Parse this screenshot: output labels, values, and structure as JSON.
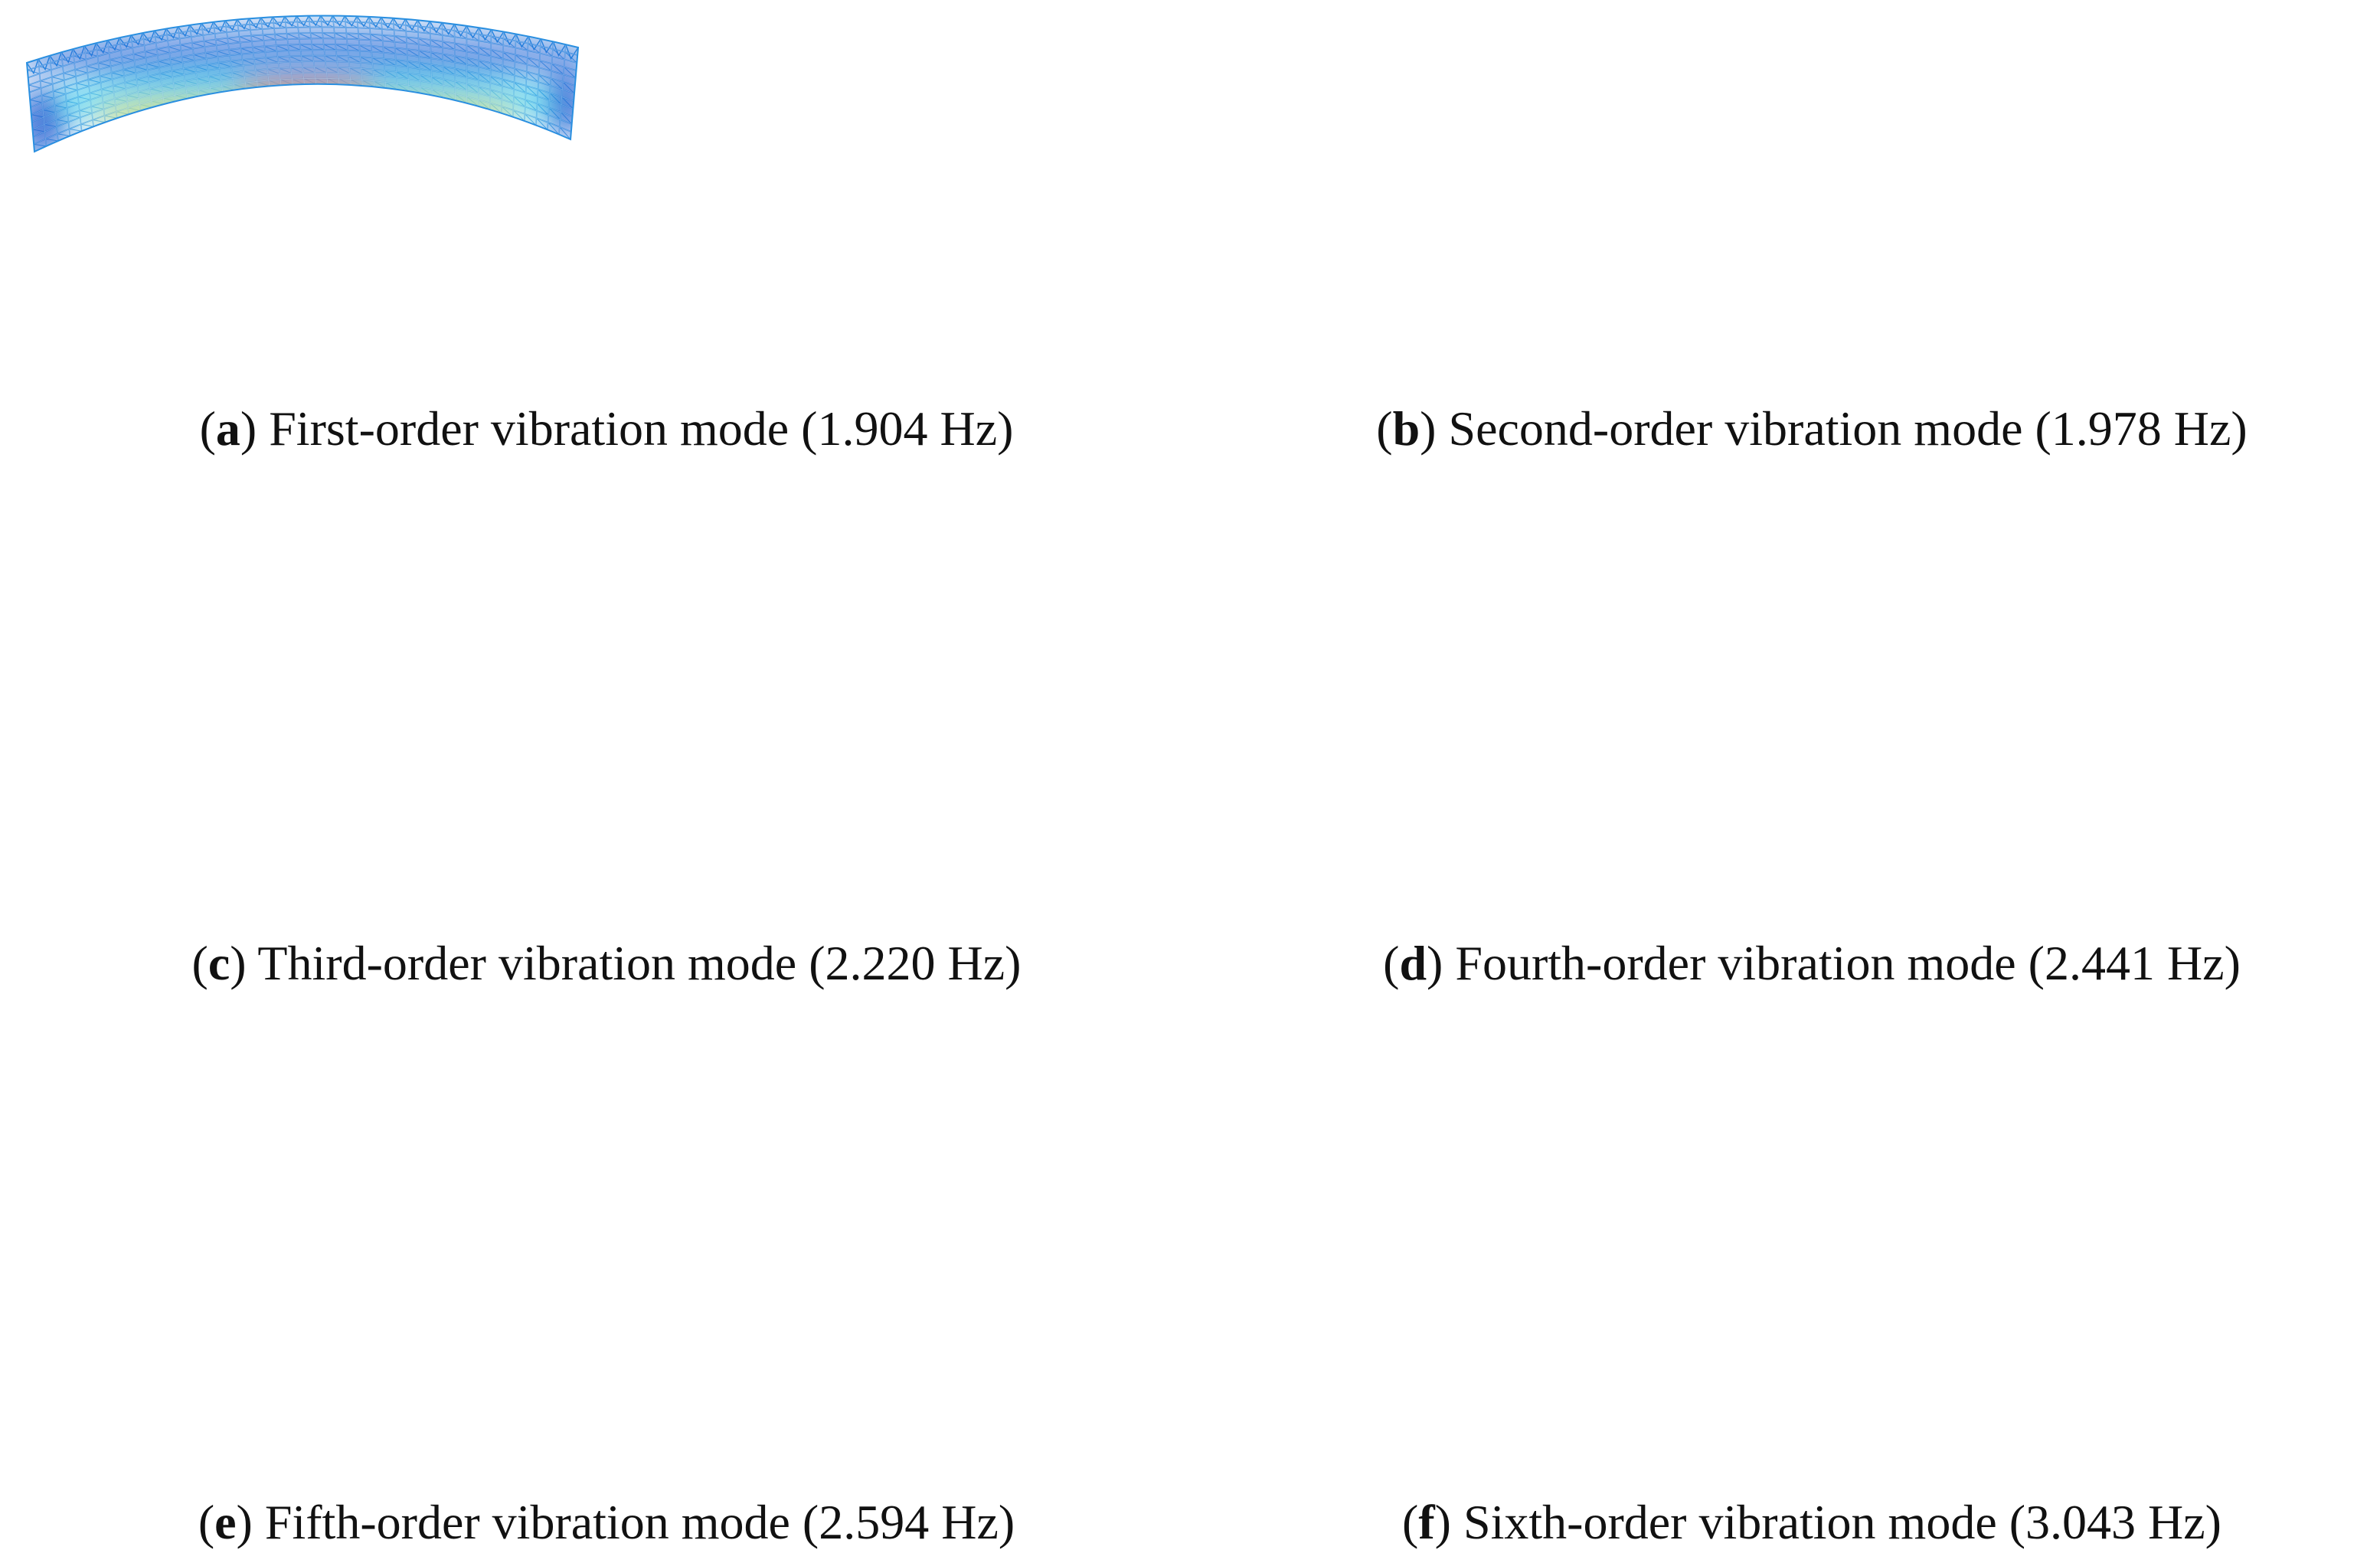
{
  "figure": {
    "panels": [
      {
        "letter": "a",
        "caption": "First-order vibration mode (1.904 Hz)",
        "base_color": "#2a8fe0",
        "regions": [
          {
            "where": "upper band",
            "color": "#1f63d6"
          },
          {
            "where": "inner field",
            "color": "#21d6f0"
          },
          {
            "where": "lower edge",
            "color": "#f5e31c"
          },
          {
            "where": "lower edge center",
            "color": "#e8301c"
          },
          {
            "where": "end supports",
            "color": "#1c57d0"
          }
        ]
      },
      {
        "letter": "b",
        "caption": "Second-order vibration mode (1.978 Hz)",
        "base_color": "#5ef03a",
        "regions": [
          {
            "where": "left field",
            "color": "#28e6b0"
          },
          {
            "where": "lower left support",
            "color": "#1f5ce0"
          },
          {
            "where": "lower right edge",
            "color": "#f0d21c"
          },
          {
            "where": "lower right edge peak",
            "color": "#ec2a1a"
          }
        ]
      },
      {
        "letter": "c",
        "caption": "Third-order vibration mode (2.220 Hz)",
        "base_color": "#3ee86a",
        "regions": [
          {
            "where": "central field",
            "color": "#1ed8ea"
          },
          {
            "where": "lower center support",
            "color": "#1f5ce0"
          },
          {
            "where": "lower left corner",
            "color": "#ec2a1a"
          },
          {
            "where": "lower right corner",
            "color": "#ec2a1a"
          },
          {
            "where": "lower edges",
            "color": "#f0c81c"
          }
        ]
      },
      {
        "letter": "d",
        "caption": "Fourth-order vibration mode (2.441 Hz)",
        "base_color": "#52ec3c",
        "regions": [
          {
            "where": "central band",
            "color": "#c8ec1c"
          },
          {
            "where": "lower center edge",
            "color": "#f0a81c"
          },
          {
            "where": "lower left corner",
            "color": "#1f6ce0"
          },
          {
            "where": "lower right corner",
            "color": "#ec3a1a"
          }
        ]
      },
      {
        "letter": "e",
        "caption": "Fifth-order vibration mode (2.594 Hz)",
        "base_color": "#64ec34",
        "regions": [
          {
            "where": "lower left edge",
            "color": "#f0c01c"
          },
          {
            "where": "lower left corner",
            "color": "#ec2a1a"
          },
          {
            "where": "center field",
            "color": "#c0e81c"
          },
          {
            "where": "lower right corner",
            "color": "#1f5ce0"
          }
        ]
      },
      {
        "letter": "f",
        "caption": "Sixth-order vibration mode (3.043 Hz)",
        "base_color": "#3ce83c",
        "regions": [
          {
            "where": "left lower dip",
            "color": "#21c8ee"
          },
          {
            "where": "left lower support",
            "color": "#1f5ce0"
          },
          {
            "where": "right lower dip",
            "color": "#21c8ee"
          },
          {
            "where": "right lower support",
            "color": "#1f5ce0"
          },
          {
            "where": "lower left corner",
            "color": "#ec3a1a"
          },
          {
            "where": "lower right corner",
            "color": "#ec3a1a"
          }
        ]
      }
    ]
  }
}
